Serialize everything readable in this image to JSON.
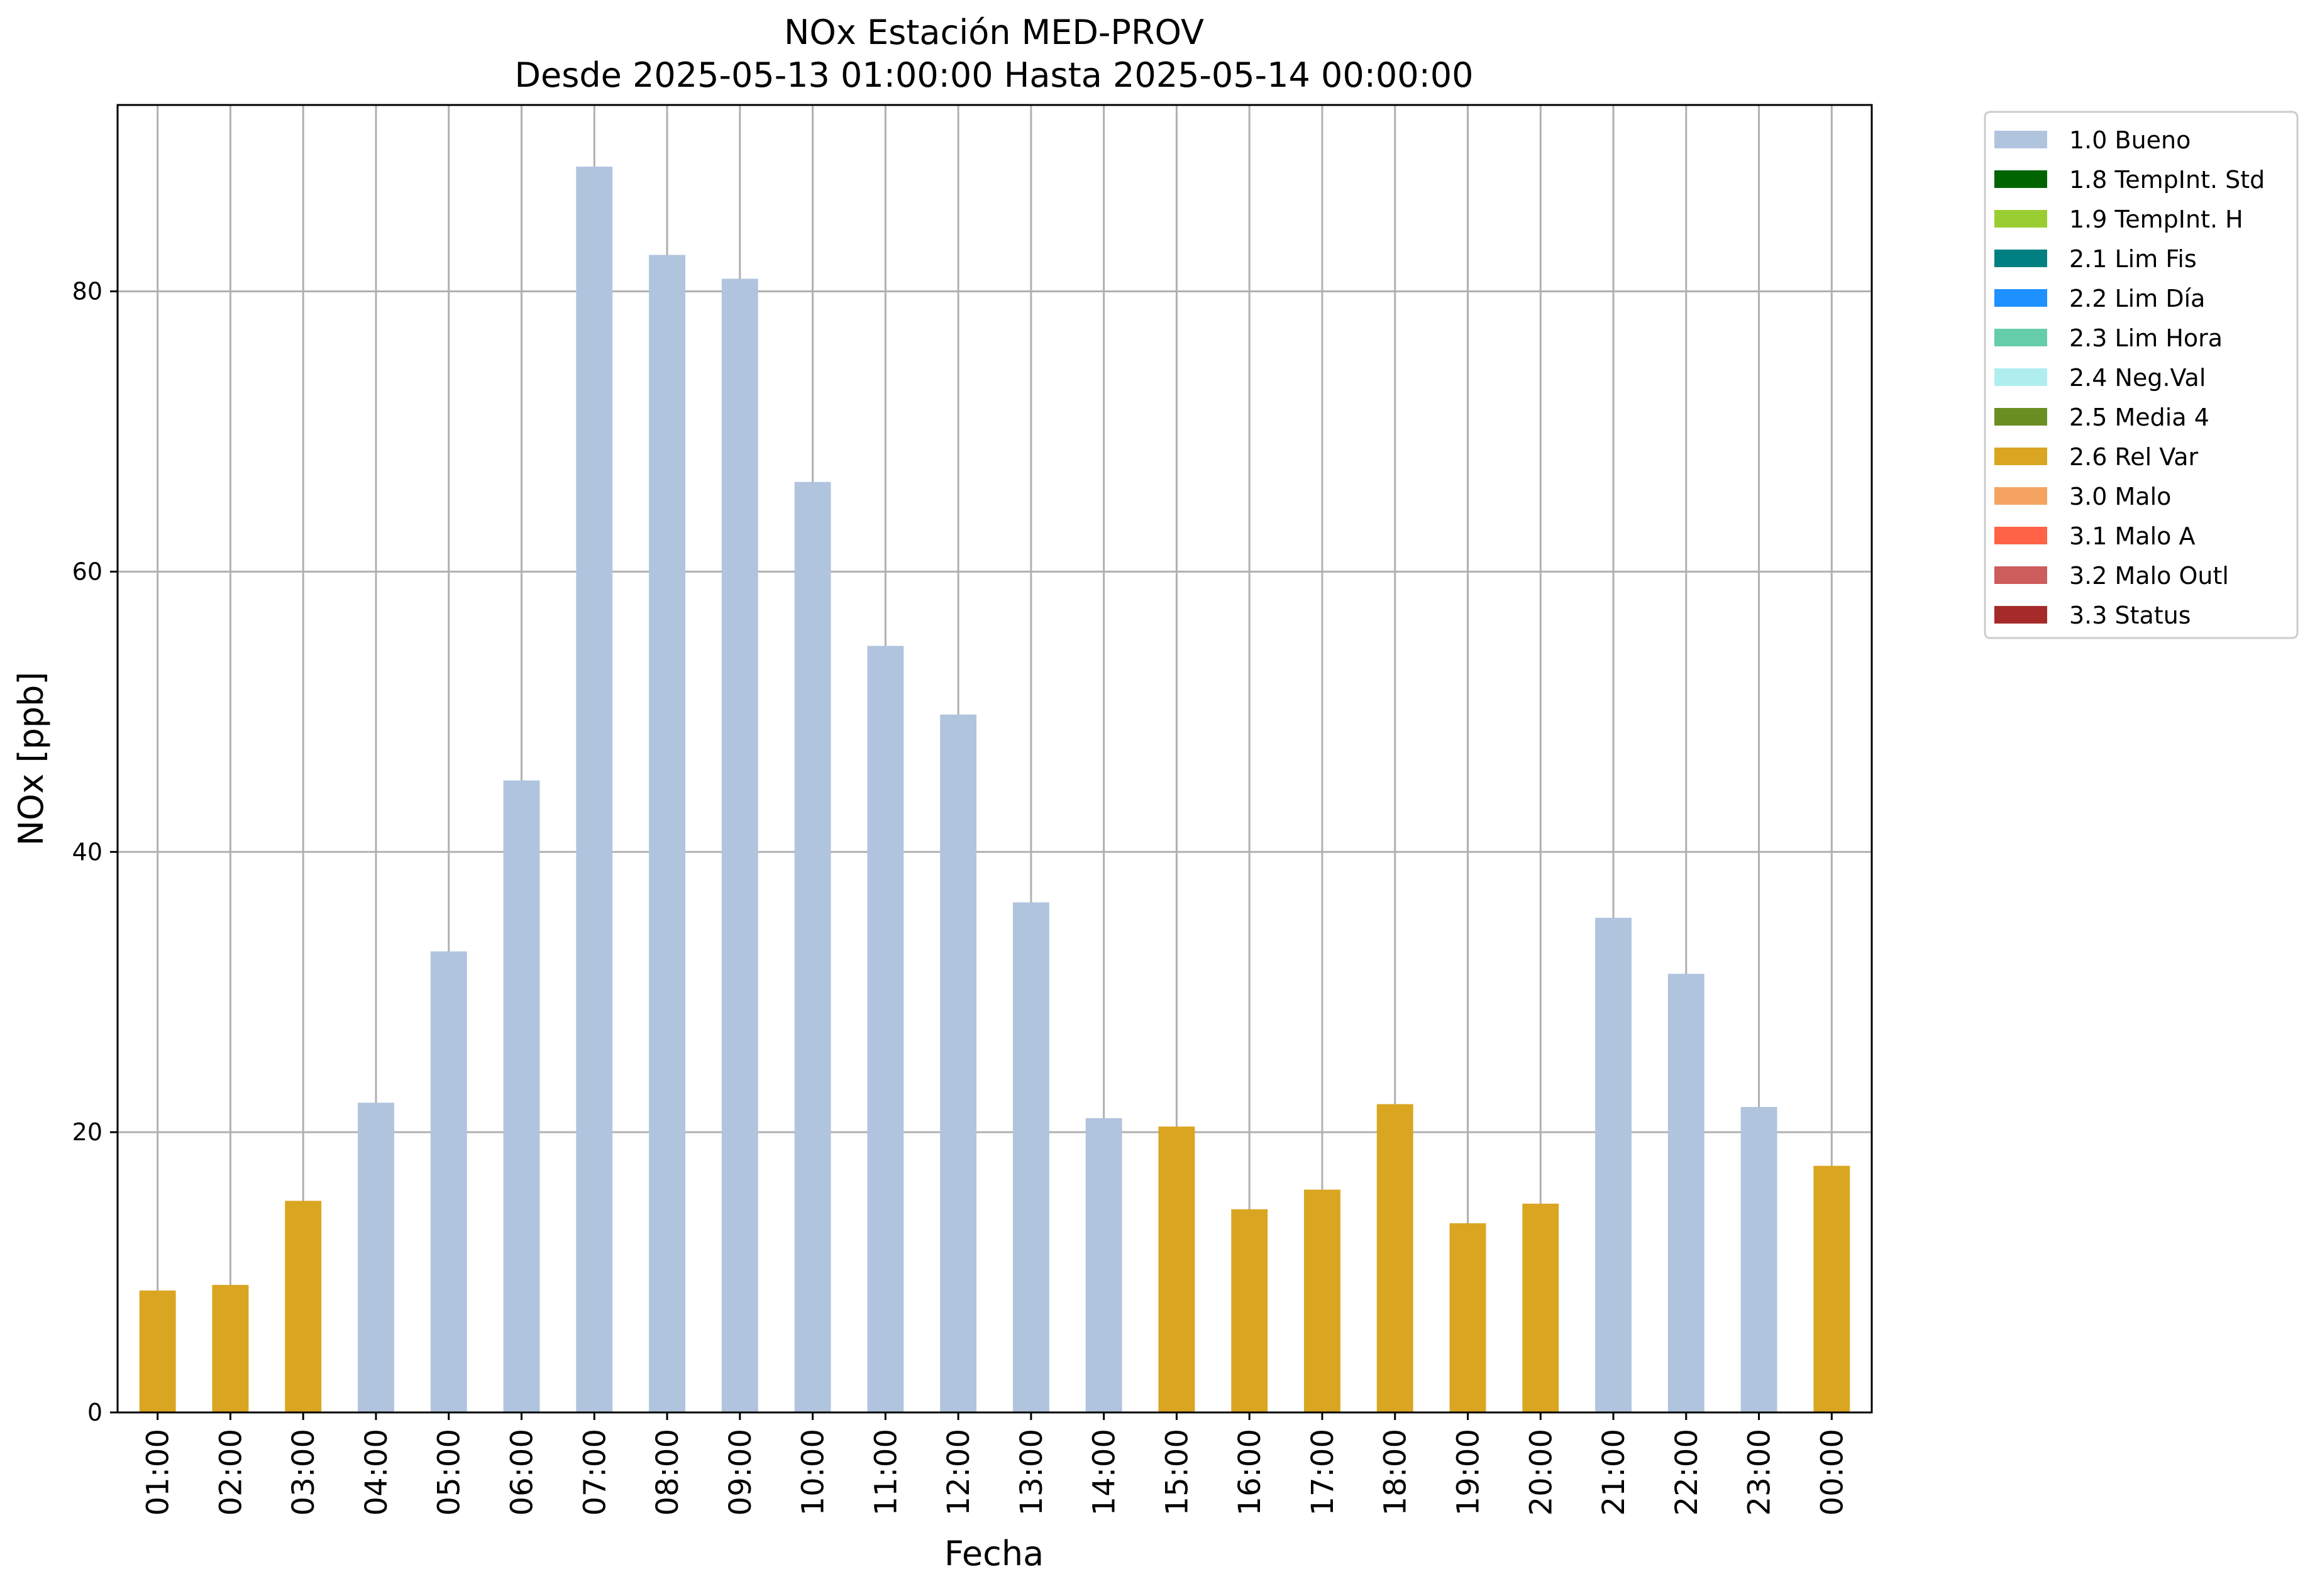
{
  "chart_data": {
    "type": "bar",
    "title": "NOx Estación MED-PROV",
    "subtitle": "Desde 2025-05-13 01:00:00 Hasta 2025-05-14 00:00:00",
    "xlabel": "Fecha",
    "ylabel": "NOx [ppb]",
    "ylim": [
      0,
      93.3
    ],
    "yticks": [
      0,
      20,
      40,
      60,
      80
    ],
    "grid": true,
    "legend_position": "outside-top-right",
    "categories": [
      "01:00",
      "02:00",
      "03:00",
      "04:00",
      "05:00",
      "06:00",
      "07:00",
      "08:00",
      "09:00",
      "10:00",
      "11:00",
      "12:00",
      "13:00",
      "14:00",
      "15:00",
      "16:00",
      "17:00",
      "18:00",
      "19:00",
      "20:00",
      "21:00",
      "22:00",
      "23:00",
      "00:00"
    ],
    "values": [
      8.7,
      9.1,
      15.1,
      22.1,
      32.9,
      45.1,
      88.9,
      82.6,
      80.9,
      66.4,
      54.7,
      49.8,
      36.4,
      21.0,
      20.4,
      14.5,
      15.9,
      22.0,
      13.5,
      14.9,
      35.3,
      31.3,
      21.8,
      17.6
    ],
    "flags": [
      "2.6 Rel Var",
      "2.6 Rel Var",
      "2.6 Rel Var",
      "1.0 Bueno",
      "1.0 Bueno",
      "1.0 Bueno",
      "1.0 Bueno",
      "1.0 Bueno",
      "1.0 Bueno",
      "1.0 Bueno",
      "1.0 Bueno",
      "1.0 Bueno",
      "1.0 Bueno",
      "1.0 Bueno",
      "2.6 Rel Var",
      "2.6 Rel Var",
      "2.6 Rel Var",
      "2.6 Rel Var",
      "2.6 Rel Var",
      "2.6 Rel Var",
      "1.0 Bueno",
      "1.0 Bueno",
      "1.0 Bueno",
      "2.6 Rel Var"
    ],
    "legend": [
      {
        "label": "1.0 Bueno",
        "color": "#b0c4de"
      },
      {
        "label": "1.8 TempInt. Std",
        "color": "#006400"
      },
      {
        "label": "1.9 TempInt. H",
        "color": "#9acd32"
      },
      {
        "label": "2.1 Lim Fis",
        "color": "#008080"
      },
      {
        "label": "2.2 Lim Día",
        "color": "#1e90ff"
      },
      {
        "label": "2.3 Lim Hora",
        "color": "#66cdaa"
      },
      {
        "label": "2.4 Neg.Val",
        "color": "#afeeee"
      },
      {
        "label": "2.5 Media 4",
        "color": "#6b8e23"
      },
      {
        "label": "2.6 Rel Var",
        "color": "#daa520"
      },
      {
        "label": "3.0 Malo",
        "color": "#f4a460"
      },
      {
        "label": "3.1 Malo A",
        "color": "#ff6347"
      },
      {
        "label": "3.2 Malo Outl",
        "color": "#cd5c5c"
      },
      {
        "label": "3.3 Status",
        "color": "#a52a2a"
      }
    ],
    "colors": {
      "grid": "#b0b0b0",
      "axes": "#000000",
      "legend_border": "#cccccc"
    }
  }
}
